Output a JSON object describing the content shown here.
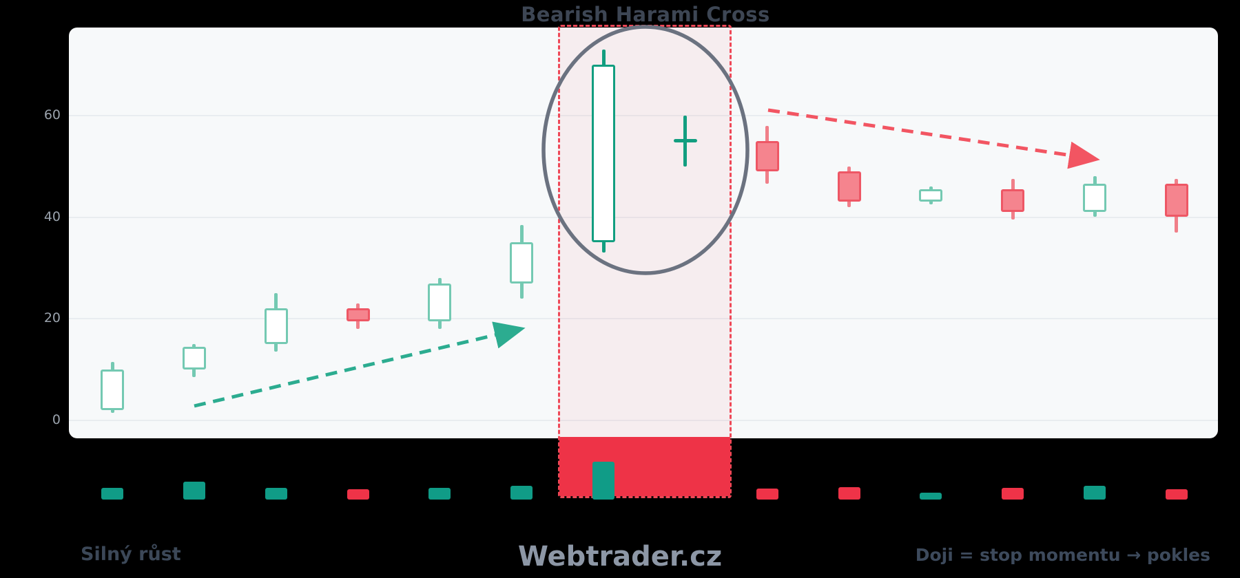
{
  "title": "Bearish Harami Cross",
  "watermark": "Webtrader.cz",
  "captions": {
    "left": "Silný růst",
    "right": "Doji = stop momentu → pokles"
  },
  "axis": {
    "yticks": [
      0,
      20,
      40,
      60
    ]
  },
  "colors": {
    "background": "#000000",
    "panel": "#f7f9fa",
    "gridline": "#e9edf0",
    "tick_label": "#9aa2ac",
    "title_text": "#3d4654",
    "watermark_text": "#8d97a6",
    "green_border_light": "#74c9b2",
    "green_border_dark": "#129e80",
    "candle_fill_up": "#ffffff",
    "red_fill": "#f5848e",
    "red_border": "#ee5765",
    "red_wick": "#f07f89",
    "volume_green": "#109c87",
    "volume_red": "#ef3348",
    "highlight_block": "#ee3347",
    "highlight_dash": "#ef4857",
    "ellipse_stroke": "#6b7280",
    "uptrend_arrow": "#2cac90",
    "downtrend_arrow": "#f25562"
  },
  "chart_data": {
    "type": "candlestick",
    "title": "Bearish Harami Cross",
    "ylabel": "",
    "xlabel": "",
    "ylim": [
      -3.5,
      77
    ],
    "yticks": [
      0,
      20,
      40,
      60
    ],
    "grid": "horizontal",
    "volume_units": "pixels",
    "candles": [
      {
        "open": 2,
        "high": 11.5,
        "low": 1.5,
        "close": 10,
        "volume": 17,
        "trend": "up",
        "emphasis": false,
        "doji": false
      },
      {
        "open": 10,
        "high": 15,
        "low": 8.5,
        "close": 14.5,
        "volume": 26,
        "trend": "up",
        "emphasis": false,
        "doji": false
      },
      {
        "open": 15,
        "high": 25,
        "low": 13.5,
        "close": 22,
        "volume": 17,
        "trend": "up",
        "emphasis": false,
        "doji": false
      },
      {
        "open": 22,
        "high": 23,
        "low": 18,
        "close": 19.5,
        "volume": 15,
        "trend": "down",
        "emphasis": false,
        "doji": false
      },
      {
        "open": 19.5,
        "high": 28,
        "low": 18,
        "close": 27,
        "volume": 17,
        "trend": "up",
        "emphasis": false,
        "doji": false
      },
      {
        "open": 27,
        "high": 38.5,
        "low": 24,
        "close": 35,
        "volume": 20,
        "trend": "up",
        "emphasis": false,
        "doji": false
      },
      {
        "open": 35,
        "high": 73,
        "low": 33,
        "close": 70,
        "volume": 55,
        "trend": "up",
        "emphasis": true,
        "doji": false
      },
      {
        "open": 55,
        "high": 60,
        "low": 50,
        "close": 55,
        "volume": 0,
        "trend": "flat",
        "emphasis": true,
        "doji": true
      },
      {
        "open": 55,
        "high": 58,
        "low": 46.5,
        "close": 49,
        "volume": 16,
        "trend": "down",
        "emphasis": false,
        "doji": false
      },
      {
        "open": 49,
        "high": 50,
        "low": 42,
        "close": 43,
        "volume": 18,
        "trend": "down",
        "emphasis": false,
        "doji": false
      },
      {
        "open": 43,
        "high": 46,
        "low": 42.5,
        "close": 45.5,
        "volume": 10,
        "trend": "up",
        "emphasis": false,
        "doji": false
      },
      {
        "open": 45.5,
        "high": 47.5,
        "low": 39.5,
        "close": 41,
        "volume": 17,
        "trend": "down",
        "emphasis": false,
        "doji": false
      },
      {
        "open": 41,
        "high": 48,
        "low": 40,
        "close": 46.5,
        "volume": 20,
        "trend": "up",
        "emphasis": false,
        "doji": false
      },
      {
        "open": 46.5,
        "high": 47.5,
        "low": 37,
        "close": 40,
        "volume": 15,
        "trend": "down",
        "emphasis": false,
        "doji": false
      }
    ],
    "annotations": {
      "pattern_label": "Bearish Harami Cross",
      "highlighted_candles": [
        7,
        8
      ],
      "uptrend_label": "Silný růst",
      "downtrend_label": "Doji = stop momentu → pokles",
      "watermark": "Webtrader.cz",
      "legend_position": "none"
    }
  }
}
